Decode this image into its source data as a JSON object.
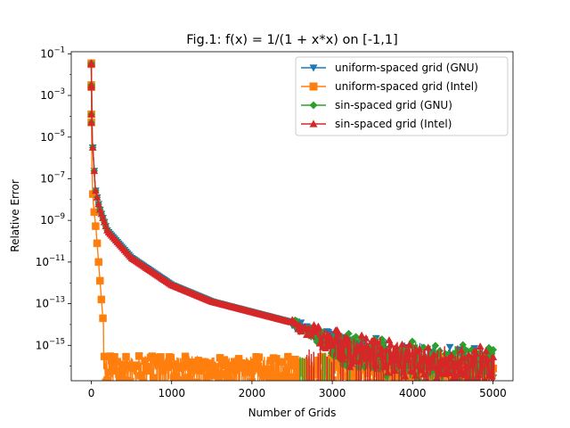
{
  "chart_data": {
    "type": "line",
    "title": "Fig.1: f(x) = 1/(1 + x*x) on [-1,1]",
    "xlabel": "Number of Grids",
    "ylabel": "Relative Error",
    "xlim": [
      -250,
      5250
    ],
    "ylim_log10": [
      -16.7,
      -0.9
    ],
    "yscale": "log",
    "grid": false,
    "legend_position": "upper right",
    "x_ticks": [
      0,
      1000,
      2000,
      3000,
      4000,
      5000
    ],
    "x_tick_labels": [
      "0",
      "1000",
      "2000",
      "3000",
      "4000",
      "5000"
    ],
    "y_ticks_log10": [
      -1,
      -3,
      -5,
      -7,
      -9,
      -11,
      -13,
      -15
    ],
    "y_tick_labels": [
      {
        "base": "10",
        "exp": "−1"
      },
      {
        "base": "10",
        "exp": "−3"
      },
      {
        "base": "10",
        "exp": "−5"
      },
      {
        "base": "10",
        "exp": "−7"
      },
      {
        "base": "10",
        "exp": "−9"
      },
      {
        "base": "10",
        "exp": "−11"
      },
      {
        "base": "10",
        "exp": "−13"
      },
      {
        "base": "10",
        "exp": "−15"
      }
    ],
    "series": [
      {
        "name": "uniform-spaced grid (GNU)",
        "color": "#1f77b4",
        "marker": "triangle-down",
        "description_points_log10": [
          [
            0,
            -1.5
          ],
          [
            10,
            -5
          ],
          [
            50,
            -7.5
          ],
          [
            100,
            -8.4
          ],
          [
            200,
            -9.5
          ],
          [
            500,
            -10.8
          ],
          [
            1000,
            -12.1
          ],
          [
            1500,
            -12.9
          ],
          [
            2000,
            -13.4
          ],
          [
            2500,
            -13.9
          ],
          [
            3000,
            -14.3
          ],
          [
            4000,
            -14.9
          ],
          [
            5000,
            -15.2
          ]
        ]
      },
      {
        "name": "uniform-spaced grid (Intel)",
        "color": "#ff7f0e",
        "marker": "square",
        "description_points_log10": [
          [
            0,
            -1.5
          ],
          [
            5,
            -6
          ],
          [
            20,
            -8
          ],
          [
            60,
            -9.5
          ],
          [
            100,
            -11.5
          ],
          [
            150,
            -14
          ],
          [
            200,
            -15.2
          ],
          [
            300,
            -15.5
          ],
          [
            1000,
            -15.5
          ],
          [
            2000,
            -15.5
          ],
          [
            3000,
            -15.5
          ],
          [
            4000,
            -15.5
          ],
          [
            5000,
            -15.5
          ]
        ],
        "noise_floor_log10": [
          -15.6,
          -16.3
        ]
      },
      {
        "name": "sin-spaced grid (GNU)",
        "color": "#2ca02c",
        "marker": "diamond",
        "description_points_log10": [
          [
            0,
            -1.5
          ],
          [
            10,
            -5
          ],
          [
            50,
            -7.5
          ],
          [
            100,
            -8.4
          ],
          [
            200,
            -9.5
          ],
          [
            500,
            -10.8
          ],
          [
            1000,
            -12.1
          ],
          [
            1500,
            -12.9
          ],
          [
            2000,
            -13.4
          ],
          [
            2500,
            -13.9
          ],
          [
            3000,
            -14.3
          ],
          [
            4000,
            -14.9
          ],
          [
            5000,
            -15.2
          ]
        ]
      },
      {
        "name": "sin-spaced grid (Intel)",
        "color": "#d62728",
        "marker": "triangle-up",
        "description_points_log10": [
          [
            0,
            -1.5
          ],
          [
            10,
            -5
          ],
          [
            50,
            -7.5
          ],
          [
            100,
            -8.4
          ],
          [
            200,
            -9.5
          ],
          [
            500,
            -10.8
          ],
          [
            1000,
            -12.1
          ],
          [
            1500,
            -12.9
          ],
          [
            2000,
            -13.4
          ],
          [
            2500,
            -13.9
          ],
          [
            3000,
            -14.3
          ],
          [
            4000,
            -14.9
          ],
          [
            5000,
            -15.2
          ]
        ]
      }
    ]
  }
}
